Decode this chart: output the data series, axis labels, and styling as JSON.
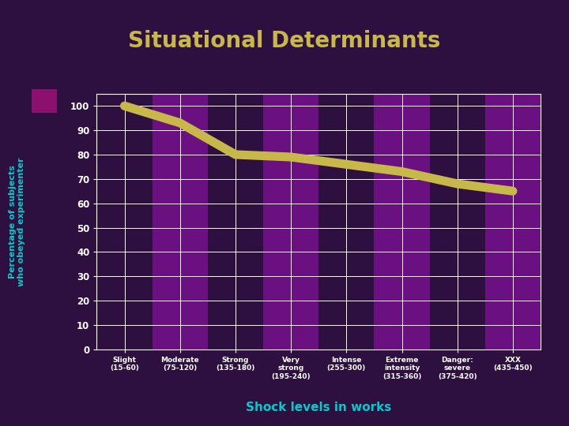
{
  "title": "Situational Determinants",
  "xlabel": "Shock levels in works",
  "ylabel": "Percentage of subjects\nwho obeyed experimenter",
  "background_color": "#2d1040",
  "plot_bg_color": "#4a1060",
  "title_color": "#c8b84a",
  "xlabel_color": "#00cccc",
  "ylabel_color": "#00cccc",
  "line_color": "#c8b84a",
  "line_width": 8,
  "grid_color": "#ffffff",
  "tick_label_color": "#ffffff",
  "ylim": [
    0,
    105
  ],
  "yticks": [
    0,
    10,
    20,
    30,
    40,
    50,
    60,
    70,
    80,
    90,
    100
  ],
  "x_labels": [
    "Slight\n(15-60)",
    "Moderate\n(75-120)",
    "Strong\n(135-180)",
    "Very\nstrong\n(195-240)",
    "Intense\n(255-300)",
    "Extreme\nintensity\n(315-360)",
    "Danger:\nsevere\n(375-420)",
    "XXX\n(435-450)"
  ],
  "y_values": [
    100,
    93,
    80,
    79,
    76,
    73,
    68,
    65
  ],
  "stripe_colors": [
    "#2d1040",
    "#6a1080"
  ],
  "purple_rect_color": "#8b1070",
  "fig_width": 7.2,
  "fig_height": 5.4,
  "dpi": 100
}
